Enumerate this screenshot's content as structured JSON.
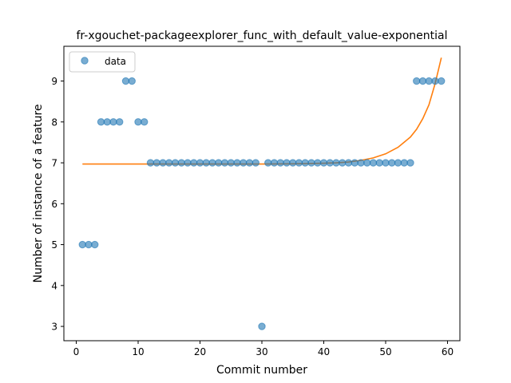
{
  "chart_data": {
    "type": "scatter",
    "title": "fr-xgouchet-packageexplorer_func_with_default_value-exponential",
    "xlabel": "Commit number",
    "ylabel": "Number of instance of a feature",
    "xlim": [
      -2,
      62
    ],
    "ylim": [
      2.65,
      9.85
    ],
    "xticks": [
      0,
      10,
      20,
      30,
      40,
      50,
      60
    ],
    "yticks": [
      3,
      4,
      5,
      6,
      7,
      8,
      9
    ],
    "grid": false,
    "legend_position": "top-left",
    "series": [
      {
        "name": "data",
        "kind": "points",
        "color": "#1f77b4",
        "x": [
          1,
          2,
          3,
          4,
          5,
          6,
          7,
          8,
          9,
          10,
          11,
          12,
          13,
          14,
          15,
          16,
          17,
          18,
          19,
          20,
          21,
          22,
          23,
          24,
          25,
          26,
          27,
          28,
          29,
          30,
          31,
          32,
          33,
          34,
          35,
          36,
          37,
          38,
          39,
          40,
          41,
          42,
          43,
          44,
          45,
          46,
          47,
          48,
          49,
          50,
          51,
          52,
          53,
          54,
          55,
          56,
          57,
          58,
          59
        ],
        "y": [
          5,
          5,
          5,
          8,
          8,
          8,
          8,
          9,
          9,
          8,
          8,
          7,
          7,
          7,
          7,
          7,
          7,
          7,
          7,
          7,
          7,
          7,
          7,
          7,
          7,
          7,
          7,
          7,
          7,
          3,
          7,
          7,
          7,
          7,
          7,
          7,
          7,
          7,
          7,
          7,
          7,
          7,
          7,
          7,
          7,
          7,
          7,
          7,
          7,
          7,
          7,
          7,
          7,
          7,
          9,
          9,
          9,
          9,
          9
        ]
      },
      {
        "kind": "fit-line",
        "color": "#ff7f0e",
        "x": [
          1,
          10,
          20,
          30,
          35,
          40,
          42,
          44,
          46,
          48,
          50,
          52,
          54,
          55,
          56,
          57,
          58,
          59
        ],
        "y": [
          6.97,
          6.97,
          6.97,
          6.97,
          6.975,
          6.99,
          7.0,
          7.02,
          7.06,
          7.12,
          7.22,
          7.38,
          7.63,
          7.82,
          8.08,
          8.42,
          8.94,
          9.57
        ]
      }
    ]
  }
}
